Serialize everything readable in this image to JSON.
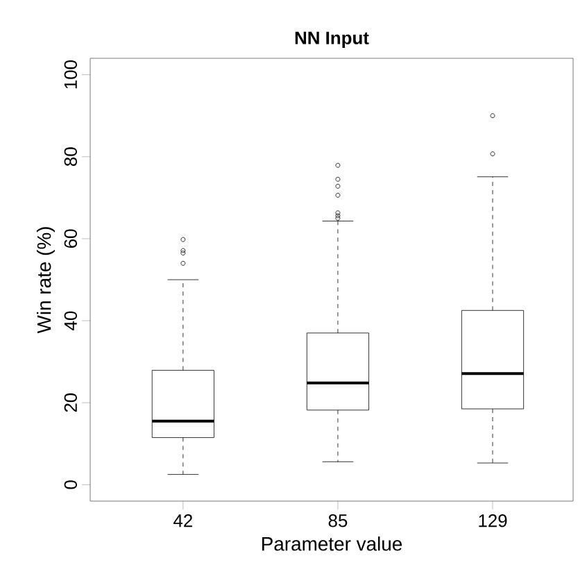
{
  "chart_data": {
    "type": "box",
    "title": "NN Input",
    "xlabel": "Parameter value",
    "ylabel": "Win rate (%)",
    "categories": [
      "42",
      "85",
      "129"
    ],
    "boxes": [
      {
        "low": 2.5,
        "q1": 11.5,
        "median": 15.5,
        "q3": 27.9,
        "high": 50.0,
        "outliers": [
          59.8,
          57.1,
          56.5,
          54.0
        ]
      },
      {
        "low": 5.6,
        "q1": 18.2,
        "median": 24.8,
        "q3": 37.0,
        "high": 64.3,
        "outliers": [
          77.9,
          74.5,
          72.8,
          70.6,
          66.3,
          65.6,
          65.0
        ]
      },
      {
        "low": 5.3,
        "q1": 18.5,
        "median": 27.1,
        "q3": 42.5,
        "high": 75.1,
        "outliers": [
          90.0,
          80.7
        ]
      }
    ],
    "ylim": [
      -4,
      104
    ],
    "yticks": [
      0,
      20,
      40,
      60,
      80,
      100
    ],
    "grid": false
  }
}
